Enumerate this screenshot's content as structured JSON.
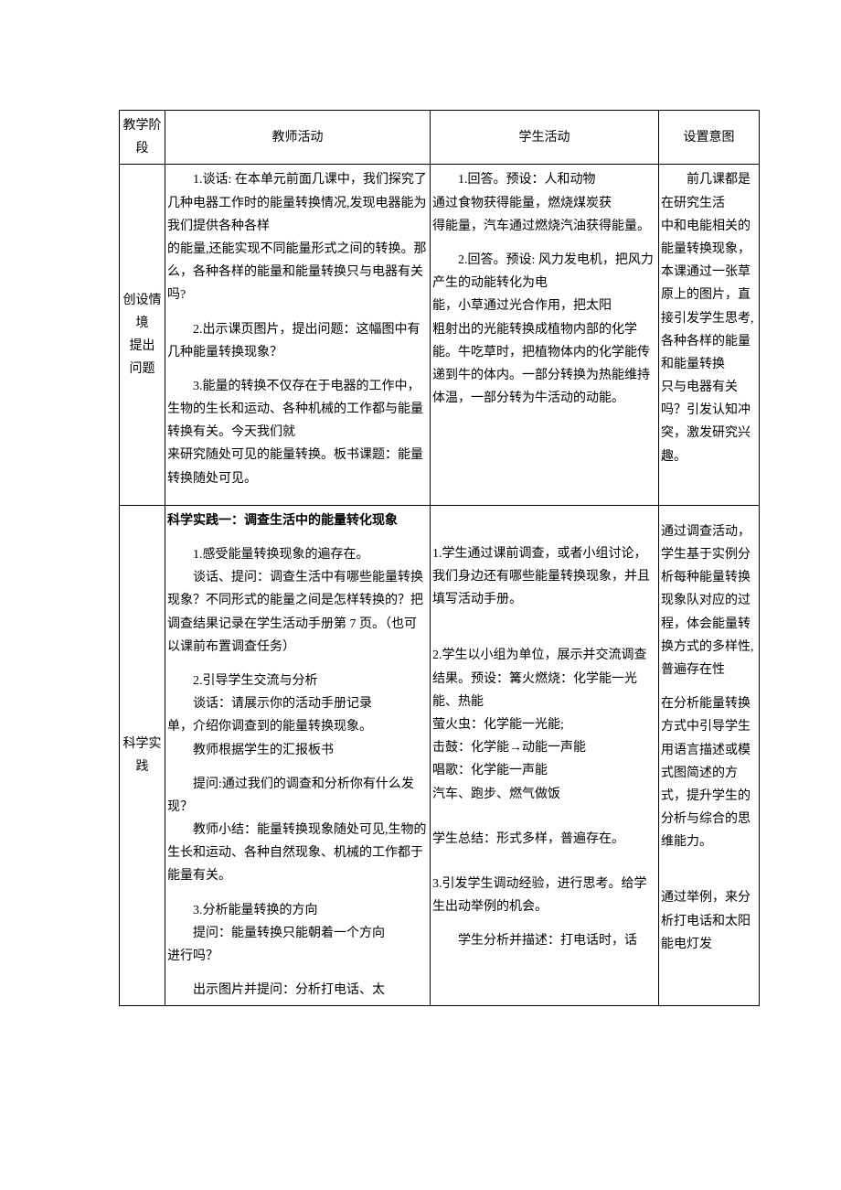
{
  "header": {
    "stage": "教学阶段",
    "teacher": "教师活动",
    "student": "学生活动",
    "intent": "设置意图"
  },
  "row1": {
    "stage": "创设情境\n提出\n问题",
    "teacher": {
      "p1": "1.谈话: 在本单元前面几课中，我们探究了几种电器工作时的能量转换情况,发现电器能为我们提供各种各样",
      "p2": "的能量,还能实现不同能量形式之间的转换。那么，各种各样的能量和能量转换只与电器有关吗?",
      "p3": "2.出示课页图片，提出问题：这幅图中有几种能量转换现象？",
      "p4": "3.能量的转换不仅存在于电器的工作中，生物的生长和运动、各种机械的工作都与能量转换有关。今天我们就",
      "p5": "来研究随处可见的能量转换。板书课题：能量转换随处可见。"
    },
    "student": {
      "p1": "1.回答。预设：人和动物",
      "p2": "通过食物获得能量，燃烧煤炭获",
      "p3": "得能量，汽车通过燃烧汽油获得能量。",
      "p4": "2.回答。预设: 风力发电机，把风力产生的动能转化为电",
      "p5": "能，小草通过光合作用，把太阳",
      "p6": "粗射出的光能转换成植物内部的化学能。牛吃草时，把植物体内的化学能传递到牛的体内。一部分转换为热能维持体温，一部分转为牛活动的动能。"
    },
    "intent": {
      "p1": "前几课都是在研究生活",
      "p2": "中和电能相关的能量转换现象，本课通过一张草原上的图片，直接引发学生思考,各种各样的能量和能量转换",
      "p3": "只与电器有关吗？引发认知冲突，激发研究兴趣。"
    }
  },
  "row2": {
    "stage": "科学实践",
    "teacher": {
      "title": "科学实践一：调查生活中的能量转化现象",
      "p1_a": "1.感受能量转换现象的遍存在。",
      "p1_b": "谈话、提问：调查生活中有哪些能量转换现象？不同形式的能量之间是怎样转换的？把调查结果记录在学生活动手册第 7 页。（也可以课前布置调查任务）",
      "p2_a": "2.引导学生交流与分析",
      "p2_b": "谈话：请展示你的活动手册记录",
      "p2_c": "单，介绍你调查到的能量转换现象。",
      "p2_d": "教师根据学生的汇报板书",
      "p2_e": "提问:通过我们的调查和分析你有什么发现？",
      "p2_f": "教师小结：能量转换现象随处可见,生物的生长和运动、各种自然现象、机械的工作都于能量有关。",
      "p3_a": "3.分析能量转换的方向",
      "p3_b": "提问：能量转换只能朝着一个方向",
      "p3_c": "进行吗？",
      "p4": "出示图片并提问：分析打电话、太"
    },
    "student": {
      "p1": "1.学生通过课前调查，或者小组讨论，我们身边还有哪些能量转换现象，并且填写活动手册。",
      "p2_a": "2.学生以小组为单位，展示并交流调查结果。预设：篝火燃烧：化学能一光能、热能",
      "p2_b": "萤火虫：化学能一光能;",
      "p2_c": "击鼓：化学能→动能一声能",
      "p2_d": "唱歌：化学能一声能",
      "p2_e": "汽车、跑步、燃气做饭",
      "p2_f": "学生总结：形式多样，普遍存在。",
      "p3": "3.引发学生调动经验，进行思考。给学生出动举例的机会。",
      "p4": "学生分析并描述：打电话时，话"
    },
    "intent": {
      "p1": "通过调查活动，学生基于实例分析每种能量转换现象队对应的过程，体会能量转换方式的多样性,普遍存在性",
      "p2": "在分析能量转换方式中引导学生用语言描述或模式图简述的方式，提升学生的分析与综合的思维能力。",
      "p3": "通过举例，来分析打电话和太阳能电灯发"
    }
  }
}
